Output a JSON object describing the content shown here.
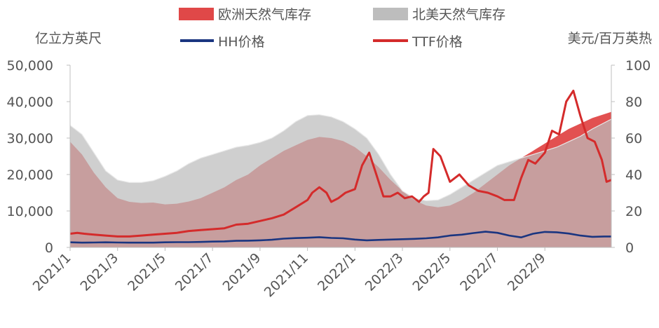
{
  "chart_data": {
    "type": "area",
    "left_axis_label": "亿立方英尺",
    "right_axis_label": "美元/百万英热",
    "x_ticks": [
      "2021/1",
      "2021/3",
      "2021/5",
      "2021/7",
      "2021/9",
      "2021/11",
      "2022/1",
      "2022/3",
      "2022/5",
      "2022/7",
      "2022/9"
    ],
    "y_left_ticks": [
      "0",
      "10,000",
      "20,000",
      "30,000",
      "40,000",
      "50,000"
    ],
    "y_right_ticks": [
      "0",
      "20",
      "40",
      "60",
      "80",
      "100"
    ],
    "y_left_range": [
      0,
      50000
    ],
    "y_right_range": [
      0,
      100
    ],
    "x_range": [
      0,
      22.8
    ],
    "grid": false,
    "legend_position": "top",
    "series": [
      {
        "name": "欧洲天然气库存",
        "kind": "area",
        "axis": "left",
        "color": "#e04848",
        "x": [
          0,
          0.5,
          1,
          1.5,
          2,
          2.5,
          3,
          3.5,
          4,
          4.5,
          5,
          5.5,
          6,
          6.5,
          7,
          7.5,
          8,
          8.5,
          9,
          9.5,
          10,
          10.5,
          11,
          11.5,
          12,
          12.5,
          13,
          13.5,
          14,
          14.5,
          15,
          15.5,
          16,
          16.5,
          17,
          17.5,
          18,
          18.5,
          19,
          19.5,
          20,
          20.5,
          21,
          21.5,
          22,
          22.8
        ],
        "y": [
          29000,
          25500,
          20500,
          16500,
          13500,
          12500,
          12200,
          12300,
          11800,
          12000,
          12600,
          13500,
          15000,
          16500,
          18500,
          20000,
          22500,
          24500,
          26500,
          28000,
          29500,
          30300,
          30000,
          29200,
          27500,
          25000,
          22000,
          18500,
          15500,
          13000,
          11500,
          11000,
          11500,
          13000,
          15000,
          17500,
          20000,
          22500,
          24500,
          26500,
          28500,
          30500,
          32500,
          34000,
          35500,
          37200
        ]
      },
      {
        "name": "北美天然气库存",
        "kind": "area",
        "axis": "left",
        "color": "#bdbdbd",
        "x": [
          0,
          0.5,
          1,
          1.5,
          2,
          2.5,
          3,
          3.5,
          4,
          4.5,
          5,
          5.5,
          6,
          6.5,
          7,
          7.5,
          8,
          8.5,
          9,
          9.5,
          10,
          10.5,
          11,
          11.5,
          12,
          12.5,
          13,
          13.5,
          14,
          14.5,
          15,
          15.5,
          16,
          16.5,
          17,
          17.5,
          18,
          18.5,
          19,
          19.5,
          20,
          20.5,
          21,
          21.5,
          22,
          22.8
        ],
        "y": [
          33500,
          31000,
          26000,
          21000,
          18500,
          17800,
          17800,
          18300,
          19500,
          21000,
          23000,
          24500,
          25500,
          26500,
          27500,
          28000,
          28800,
          30000,
          32000,
          34500,
          36200,
          36400,
          35800,
          34500,
          32500,
          30000,
          25500,
          20000,
          15500,
          13500,
          12800,
          13000,
          14500,
          16500,
          18500,
          20500,
          22500,
          23500,
          24500,
          25500,
          26500,
          27500,
          29000,
          30500,
          32500,
          35200
        ]
      },
      {
        "name": "HH价格",
        "kind": "line",
        "axis": "right",
        "color": "#1a3580",
        "x": [
          0,
          0.5,
          1,
          1.5,
          2,
          2.5,
          3,
          3.5,
          4,
          4.5,
          5,
          5.5,
          6,
          6.5,
          7,
          7.5,
          8,
          8.5,
          9,
          9.5,
          10,
          10.5,
          11,
          11.5,
          12,
          12.5,
          13,
          13.5,
          14,
          14.5,
          15,
          15.5,
          16,
          16.5,
          17,
          17.5,
          18,
          18.5,
          19,
          19.5,
          20,
          20.5,
          21,
          21.5,
          22,
          22.5,
          22.8
        ],
        "y": [
          2.8,
          2.6,
          2.7,
          2.8,
          2.7,
          2.6,
          2.6,
          2.6,
          2.8,
          2.9,
          2.9,
          3.0,
          3.2,
          3.3,
          3.6,
          3.7,
          3.9,
          4.2,
          4.8,
          5.1,
          5.3,
          5.6,
          5.2,
          5.0,
          4.3,
          3.9,
          4.1,
          4.3,
          4.5,
          4.7,
          5.0,
          5.5,
          6.5,
          7.0,
          7.9,
          8.6,
          8.0,
          6.5,
          5.5,
          7.5,
          8.5,
          8.3,
          7.6,
          6.5,
          5.8,
          6.0,
          6.0
        ]
      },
      {
        "name": "TTF价格",
        "kind": "line",
        "axis": "right",
        "color": "#d42b2b",
        "x": [
          0,
          0.3,
          0.6,
          1,
          1.5,
          2,
          2.5,
          3,
          3.5,
          4,
          4.5,
          5,
          5.5,
          6,
          6.5,
          7,
          7.5,
          8,
          8.5,
          9,
          9.5,
          10,
          10.2,
          10.5,
          10.8,
          11,
          11.3,
          11.6,
          12,
          12.3,
          12.6,
          12.9,
          13.2,
          13.5,
          13.8,
          14.1,
          14.4,
          14.7,
          14.9,
          15.1,
          15.3,
          15.6,
          16,
          16.4,
          16.8,
          17.2,
          17.6,
          18,
          18.3,
          18.7,
          19,
          19.3,
          19.6,
          20,
          20.3,
          20.6,
          20.9,
          21.2,
          21.5,
          21.8,
          22.1,
          22.4,
          22.6,
          22.8
        ],
        "y": [
          7.5,
          8,
          7.5,
          7,
          6.5,
          6,
          6,
          6.5,
          7,
          7.5,
          8,
          9,
          9.5,
          10,
          10.5,
          12.5,
          13,
          14.5,
          16,
          18,
          22,
          26,
          30,
          33,
          30,
          25,
          27,
          30,
          32,
          45,
          52,
          40,
          28,
          28,
          30,
          27,
          28,
          25,
          28,
          30,
          54,
          50,
          36,
          40,
          34,
          31,
          30,
          28,
          26,
          26,
          38,
          48,
          46,
          52,
          64,
          62,
          80,
          86,
          72,
          60,
          58,
          48,
          36,
          37
        ]
      }
    ]
  }
}
